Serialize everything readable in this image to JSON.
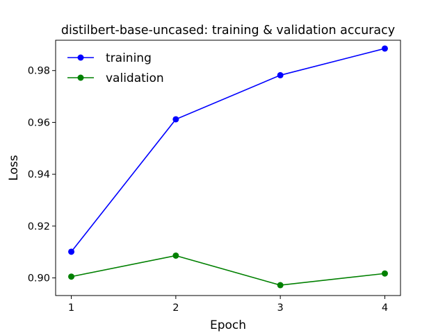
{
  "chart_data": {
    "type": "line",
    "title": "distilbert-base-uncased: training & validation accuracy",
    "xlabel": "Epoch",
    "ylabel": "Loss",
    "x": [
      1,
      2,
      3,
      4
    ],
    "x_ticks": [
      "1",
      "2",
      "3",
      "4"
    ],
    "xlim": [
      0.85,
      4.15
    ],
    "ylim": [
      0.8932,
      0.9917
    ],
    "y_ticks": [
      0.9,
      0.92,
      0.94,
      0.96,
      0.98
    ],
    "y_tick_labels": [
      "0.90",
      "0.92",
      "0.94",
      "0.96",
      "0.98"
    ],
    "grid": false,
    "legend_position": "upper-left",
    "series": [
      {
        "name": "training",
        "color": "#0000ff",
        "marker": "circle",
        "values": [
          0.9101,
          0.9612,
          0.9782,
          0.9885
        ]
      },
      {
        "name": "validation",
        "color": "#008000",
        "marker": "circle",
        "values": [
          0.9005,
          0.9086,
          0.8972,
          0.9017
        ]
      }
    ]
  }
}
